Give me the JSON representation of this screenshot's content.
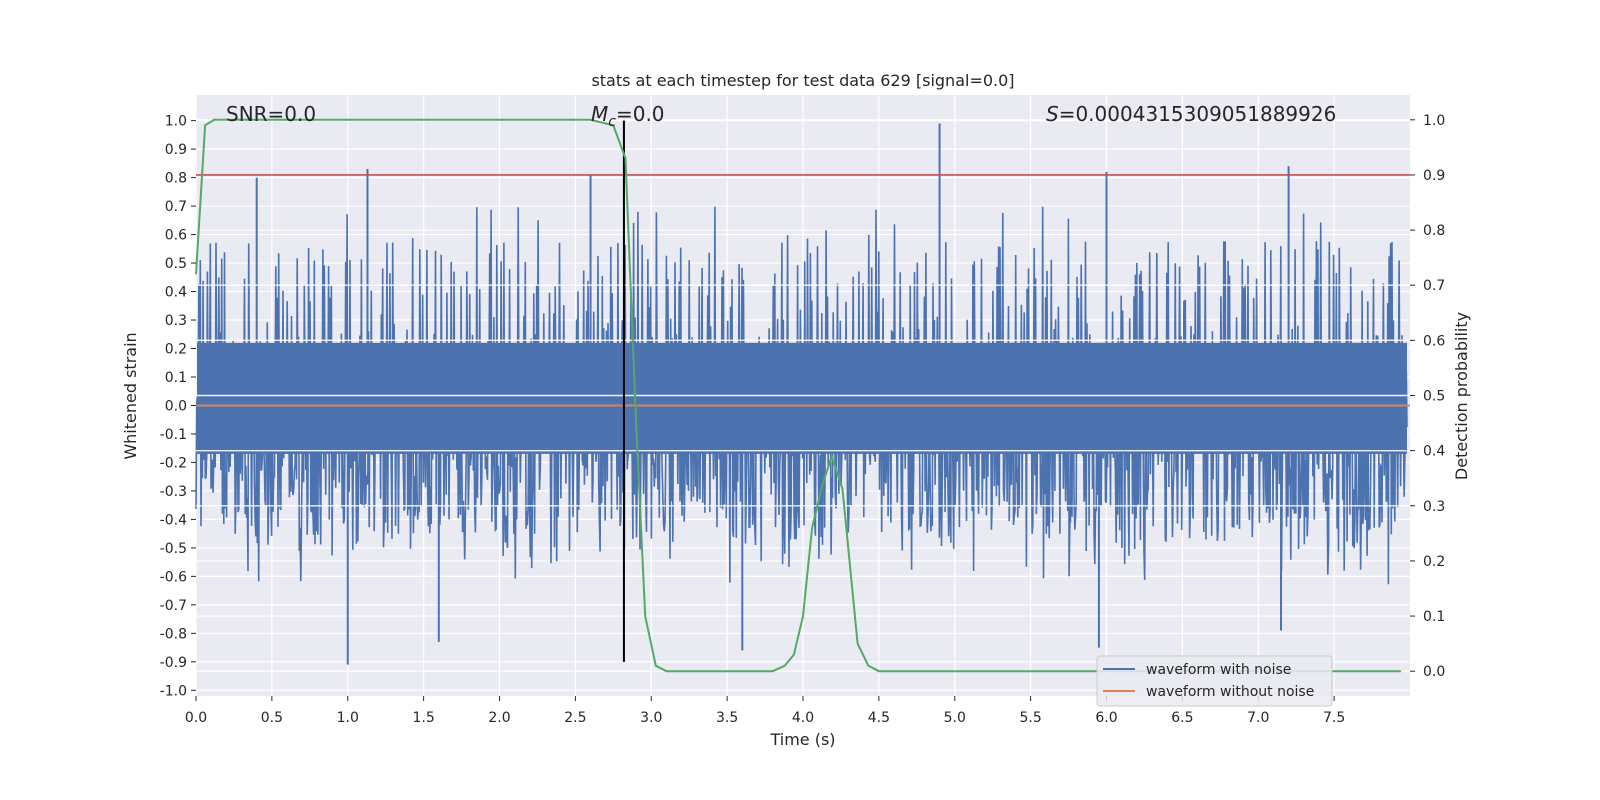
{
  "chart_data": {
    "type": "line",
    "title": "stats at each timestep for test data 629 [signal=0.0]",
    "xlabel": "Time (s)",
    "ylabel": "Whitened strain",
    "y2label": "Detection probability",
    "xlim": [
      0.0,
      8.0
    ],
    "ylim": [
      -1.02,
      1.09
    ],
    "y2lim": [
      -0.045,
      1.045
    ],
    "x_ticks": [
      "0.0",
      "0.5",
      "1.0",
      "1.5",
      "2.0",
      "2.5",
      "3.0",
      "3.5",
      "4.0",
      "4.5",
      "5.0",
      "5.5",
      "6.0",
      "6.5",
      "7.0",
      "7.5"
    ],
    "y_ticks": [
      "-1.0",
      "-0.9",
      "-0.8",
      "-0.7",
      "-0.6",
      "-0.5",
      "-0.4",
      "-0.3",
      "-0.2",
      "-0.1",
      "0.0",
      "0.1",
      "0.2",
      "0.3",
      "0.4",
      "0.5",
      "0.6",
      "0.7",
      "0.8",
      "0.9",
      "1.0"
    ],
    "y2_ticks": [
      "0.0",
      "0.1",
      "0.2",
      "0.3",
      "0.4",
      "0.5",
      "0.6",
      "0.7",
      "0.8",
      "0.9",
      "1.0"
    ],
    "grid": true,
    "legend_position": "lower-right",
    "annotations": {
      "snr": "SNR=0.0",
      "mc_symbol": "M",
      "mc_sub": "c",
      "mc_value": "=0.0",
      "s_symbol": "S",
      "s_value": "=0.0004315309051889926"
    },
    "series": [
      {
        "name": "waveform with noise",
        "color": "#4c72b0",
        "envelope_typical": [
          -0.3,
          0.4
        ],
        "peaks_x": [
          0.4,
          1.13,
          2.6,
          4.9,
          6.0,
          7.2
        ],
        "peaks_y": [
          0.8,
          0.83,
          0.81,
          0.99,
          0.82,
          0.84
        ],
        "troughs_x": [
          1.0,
          1.6,
          3.6,
          5.95,
          7.15
        ],
        "troughs_y": [
          -0.91,
          -0.83,
          -0.86,
          -0.85,
          -0.79
        ]
      },
      {
        "name": "waveform without noise",
        "color": "#dd8452",
        "x": [
          0.0,
          8.0
        ],
        "y": [
          0.0,
          0.0
        ]
      },
      {
        "name": "detection probability",
        "color": "#55a868",
        "x": [
          0.0,
          0.06,
          0.12,
          0.5,
          1.0,
          1.5,
          2.0,
          2.5,
          2.6,
          2.75,
          2.83,
          2.9,
          2.96,
          3.03,
          3.1,
          3.3,
          3.5,
          3.7,
          3.8,
          3.88,
          3.94,
          4.0,
          4.06,
          4.13,
          4.19,
          4.26,
          4.36,
          4.43,
          4.5,
          5.0,
          6.0,
          7.0,
          7.94
        ],
        "y": [
          0.72,
          0.99,
          1.0,
          1.0,
          1.0,
          1.0,
          1.0,
          1.0,
          1.0,
          0.99,
          0.93,
          0.45,
          0.1,
          0.01,
          0.0,
          0.0,
          0.0,
          0.0,
          0.0,
          0.01,
          0.03,
          0.1,
          0.26,
          0.34,
          0.39,
          0.33,
          0.05,
          0.01,
          0.0,
          0.0,
          0.0,
          0.0,
          0.0
        ]
      }
    ],
    "threshold": {
      "value": 0.9,
      "axis": "y2",
      "color": "#c44e52"
    },
    "marker": {
      "x": 2.82,
      "from": -0.9,
      "to": 1.0,
      "color": "#000000"
    }
  }
}
